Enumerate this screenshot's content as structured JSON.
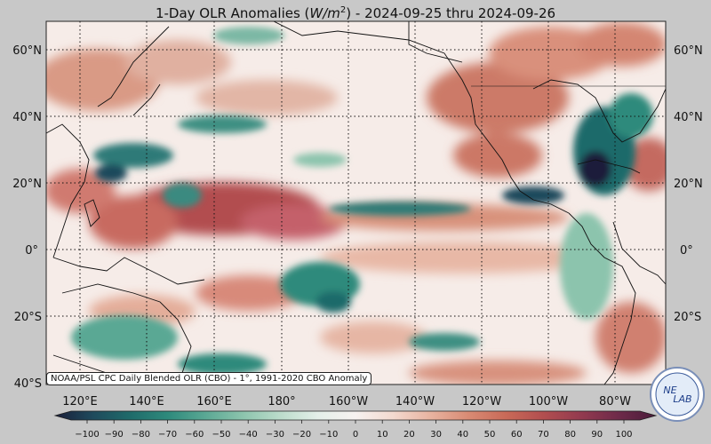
{
  "title": {
    "prefix": "1-Day OLR Anomalies (",
    "unit_base": "W/m",
    "unit_exp": "2",
    "suffix": ") - 2024-09-25 thru 2024-09-26"
  },
  "map": {
    "lat_labels": [
      "60°N",
      "40°N",
      "20°N",
      "0°",
      "20°S",
      "40°S"
    ],
    "lon_labels": [
      "120°E",
      "140°E",
      "160°E",
      "180°",
      "160°W",
      "140°W",
      "120°W",
      "100°W",
      "80°W"
    ],
    "source_note": "NOAA/PSL CPC Daily Blended OLR (CBO) - 1°, 1991-2020 CBO Anomaly"
  },
  "colorbar": {
    "ticks": [
      "−100",
      "−90",
      "−80",
      "−70",
      "−60",
      "−50",
      "−40",
      "−30",
      "−20",
      "−10",
      "0",
      "10",
      "20",
      "30",
      "40",
      "50",
      "60",
      "70",
      "80",
      "90",
      "100"
    ],
    "min": -100,
    "max": 100,
    "colors": [
      "#1a1f3a",
      "#1f4a5c",
      "#1f6b6a",
      "#2e8a7c",
      "#5aa894",
      "#8cc4ad",
      "#bcdccb",
      "#e4efe9",
      "#f7f2f0",
      "#f3d9cf",
      "#e8b3a0",
      "#d98b74",
      "#c96a58",
      "#b24e4f",
      "#933a4f",
      "#6e2a4a",
      "#4a1c3a"
    ]
  },
  "logo": {
    "text_top": "NE",
    "text_bottom": "LAB"
  }
}
